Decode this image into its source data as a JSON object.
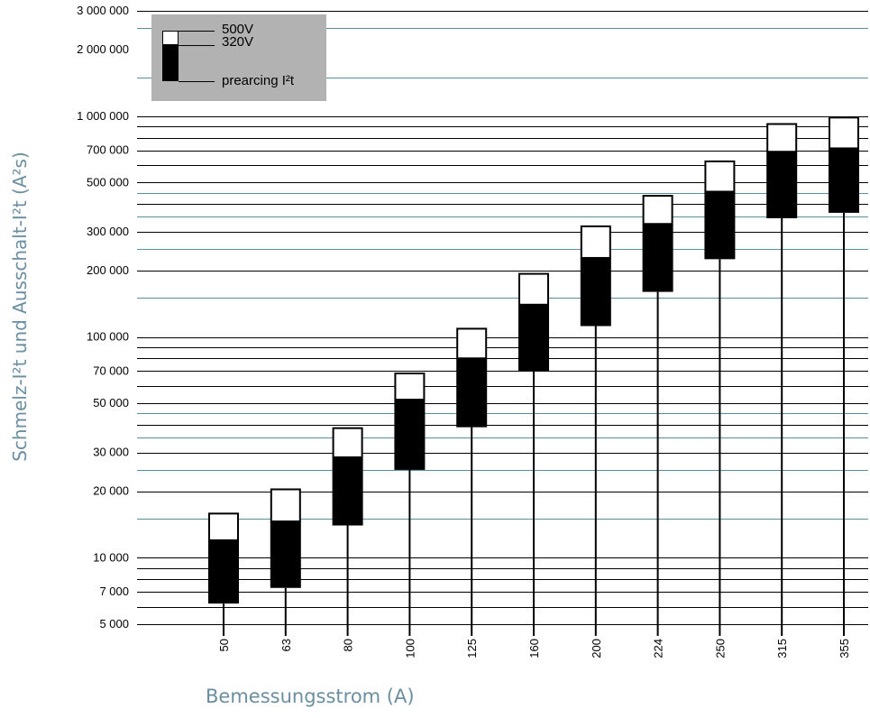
{
  "chart_data": {
    "type": "bar",
    "subtype": "floating-stacked-range",
    "yscale": "log",
    "ylim": [
      5000,
      3000000
    ],
    "ylabel": "Schmelz-I²t und Ausschalt-I²t (A²s)",
    "xlabel": "Bemessungsstrom (A)",
    "yticks": [
      {
        "value": 3000000,
        "label": "3 000 000"
      },
      {
        "value": 2000000,
        "label": "2 000 000"
      },
      {
        "value": 1000000,
        "label": "1 000 000"
      },
      {
        "value": 700000,
        "label": "700 000"
      },
      {
        "value": 500000,
        "label": "500 000"
      },
      {
        "value": 300000,
        "label": "300 000"
      },
      {
        "value": 200000,
        "label": "200 000"
      },
      {
        "value": 100000,
        "label": "100 000"
      },
      {
        "value": 70000,
        "label": "70 000"
      },
      {
        "value": 50000,
        "label": "50 000"
      },
      {
        "value": 30000,
        "label": "30 000"
      },
      {
        "value": 20000,
        "label": "20 000"
      },
      {
        "value": 10000,
        "label": "10 000"
      },
      {
        "value": 7000,
        "label": "7 000"
      },
      {
        "value": 5000,
        "label": "5 000"
      }
    ],
    "grid_black": [
      3000000,
      1000000,
      900000,
      800000,
      700000,
      600000,
      500000,
      400000,
      300000,
      200000,
      100000,
      90000,
      80000,
      70000,
      60000,
      50000,
      40000,
      30000,
      20000,
      10000,
      9000,
      8000,
      7000,
      6000,
      5000
    ],
    "grid_teal": [
      2500000,
      1500000,
      450000,
      350000,
      250000,
      150000,
      45000,
      35000,
      25000,
      15000
    ],
    "categories": [
      "50",
      "63",
      "80",
      "100",
      "125",
      "160",
      "200",
      "224",
      "250",
      "315",
      "355"
    ],
    "series": [
      {
        "name": "prearcing I²t",
        "values": [
          6200,
          7300,
          14000,
          25000,
          39000,
          70000,
          112000,
          160000,
          225000,
          345000,
          365000
        ]
      },
      {
        "name": "320V",
        "values": [
          12000,
          14600,
          28500,
          52000,
          80000,
          140000,
          228000,
          325000,
          455000,
          690000,
          715000
        ]
      },
      {
        "name": "500V",
        "values": [
          16000,
          20600,
          39000,
          69000,
          110000,
          195000,
          320000,
          440000,
          630000,
          930000,
          995000
        ]
      }
    ],
    "legend": {
      "position": "top-left",
      "labels": {
        "v500": "500V",
        "v320": "320V",
        "prearc": "prearcing I²t"
      }
    },
    "colors": {
      "grid_black": "#000000",
      "grid_teal": "#5b8fa0",
      "fill": "#000000",
      "box": "#ffffff",
      "axis_title": "#6b8ea0",
      "legend_bg": "#b2b2b2"
    }
  }
}
